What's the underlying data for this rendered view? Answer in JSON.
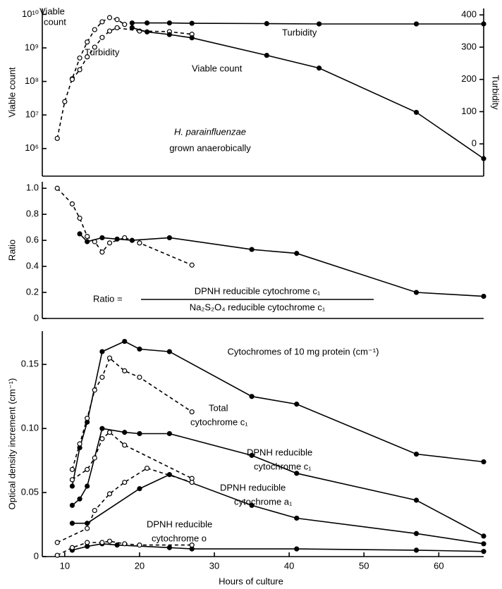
{
  "chart_data": [
    {
      "type": "line",
      "yscale": "log",
      "ylabel": "Viable count",
      "y2label": "Turbidity",
      "ylim": [
        150000,
        15000000000
      ],
      "yticks": [
        {
          "value": 1000000,
          "label": "10⁶"
        },
        {
          "value": 10000000,
          "label": "10⁷"
        },
        {
          "value": 100000000,
          "label": "10⁸"
        },
        {
          "value": 1000000000,
          "label": "10⁹"
        },
        {
          "value": 10000000000,
          "label": "10¹⁰"
        }
      ],
      "y2lim": [
        -100,
        420
      ],
      "y2ticks": [
        0,
        100,
        200,
        300,
        400
      ],
      "xlim": [
        7,
        66
      ],
      "series": [
        {
          "color": "#000",
          "marker": "open",
          "dashed": true,
          "x": [
            9,
            10,
            11,
            12,
            13,
            14,
            15,
            16,
            17,
            18
          ],
          "values": [
            2000000,
            25000000,
            120000000,
            500000000,
            1500000000,
            3500000000,
            6000000000,
            8000000000,
            7000000000,
            5000000000
          ]
        },
        {
          "color": "#000",
          "marker": "open",
          "dashed": true,
          "axis": "y2",
          "x": [
            11,
            12,
            13,
            14,
            15,
            16,
            17,
            20,
            24,
            27
          ],
          "values": [
            200,
            230,
            270,
            300,
            330,
            350,
            360,
            350,
            348,
            340
          ]
        },
        {
          "color": "#000",
          "marker": "filled",
          "dashed": false,
          "x": [
            19,
            21,
            24,
            27,
            37,
            44,
            57,
            66
          ],
          "values": [
            4000000000,
            3000000000,
            2500000000,
            2000000000,
            600000000,
            250000000,
            12000000,
            500000
          ]
        },
        {
          "color": "#000",
          "marker": "filled",
          "dashed": false,
          "axis": "y2",
          "x": [
            19,
            21,
            24,
            27,
            37,
            44,
            57,
            66
          ],
          "values": [
            375,
            375,
            375,
            374,
            373,
            372,
            372,
            372
          ]
        }
      ],
      "annotations": [
        "Viable",
        "count",
        "Turbidity",
        "Turbidity",
        "Viable count",
        "H. parainfluenzae",
        "grown anaerobically"
      ]
    },
    {
      "type": "line",
      "ylabel": "Ratio",
      "ylim": [
        0,
        1.05
      ],
      "yticks": [
        0,
        0.2,
        0.4,
        0.6,
        0.8,
        {
          "value": 1,
          "label": "1.0"
        }
      ],
      "xlim": [
        7,
        66
      ],
      "series": [
        {
          "color": "#000",
          "marker": "open",
          "dashed": true,
          "x": [
            9,
            11,
            12,
            13,
            14,
            15,
            16,
            18,
            20,
            27
          ],
          "values": [
            1.0,
            0.88,
            0.77,
            0.63,
            0.59,
            0.51,
            0.58,
            0.62,
            0.58,
            0.41
          ]
        },
        {
          "color": "#000",
          "marker": "filled",
          "dashed": false,
          "x": [
            12,
            13,
            15,
            17,
            19,
            24,
            35,
            41,
            57,
            66
          ],
          "values": [
            0.65,
            0.59,
            0.62,
            0.61,
            0.6,
            0.62,
            0.53,
            0.5,
            0.2,
            0.17
          ]
        }
      ],
      "annotations": [
        "Ratio =",
        "DPNH reducible cytochrome c₁",
        "Na₂S₂O₄ reducible cytochrome c₁"
      ]
    },
    {
      "type": "line",
      "ylabel": "Optical density increment (cm⁻¹)",
      "xlabel": "Hours of culture",
      "ylim": [
        0,
        0.176
      ],
      "yticks": [
        0,
        0.05,
        {
          "value": 0.1,
          "label": "0.10"
        },
        0.15
      ],
      "xlim": [
        7,
        66
      ],
      "xticks": [
        10,
        20,
        30,
        40,
        50,
        60
      ],
      "series": [
        {
          "color": "#000",
          "marker": "filled",
          "dashed": false,
          "x": [
            11,
            12,
            13,
            15,
            18,
            20,
            24,
            35,
            41,
            57,
            66
          ],
          "values": [
            0.055,
            0.085,
            0.105,
            0.16,
            0.168,
            0.162,
            0.16,
            0.125,
            0.119,
            0.08,
            0.074
          ]
        },
        {
          "color": "#000",
          "marker": "open",
          "dashed": true,
          "x": [
            11,
            12,
            13,
            14,
            15,
            16,
            18,
            20,
            27
          ],
          "values": [
            0.068,
            0.088,
            0.108,
            0.13,
            0.14,
            0.155,
            0.145,
            0.14,
            0.113
          ]
        },
        {
          "color": "#000",
          "marker": "filled",
          "dashed": false,
          "x": [
            11,
            12,
            13,
            15,
            18,
            20,
            24,
            35,
            41,
            57,
            66
          ],
          "values": [
            0.04,
            0.045,
            0.055,
            0.1,
            0.097,
            0.096,
            0.096,
            0.079,
            0.065,
            0.044,
            0.016
          ]
        },
        {
          "color": "#000",
          "marker": "open",
          "dashed": true,
          "x": [
            11,
            13,
            14,
            15,
            16,
            18,
            27
          ],
          "values": [
            0.06,
            0.068,
            0.077,
            0.092,
            0.097,
            0.087,
            0.061
          ]
        },
        {
          "color": "#000",
          "marker": "filled",
          "dashed": false,
          "x": [
            11,
            13,
            20,
            24,
            35,
            41,
            57,
            66
          ],
          "values": [
            0.026,
            0.026,
            0.053,
            0.064,
            0.04,
            0.03,
            0.018,
            0.01
          ]
        },
        {
          "color": "#000",
          "marker": "open",
          "dashed": true,
          "x": [
            9,
            13,
            14,
            16,
            18,
            21,
            27
          ],
          "values": [
            0.011,
            0.022,
            0.036,
            0.049,
            0.058,
            0.069,
            0.058
          ]
        },
        {
          "color": "#000",
          "marker": "filled",
          "dashed": false,
          "x": [
            11,
            13,
            15,
            17,
            24,
            27,
            41,
            57,
            66
          ],
          "values": [
            0.005,
            0.008,
            0.01,
            0.009,
            0.007,
            0.006,
            0.006,
            0.005,
            0.004
          ]
        },
        {
          "color": "#000",
          "marker": "open",
          "dashed": true,
          "x": [
            9,
            11,
            13,
            15,
            16,
            18,
            20,
            27
          ],
          "values": [
            0.001,
            0.007,
            0.011,
            0.011,
            0.012,
            0.01,
            0.009,
            0.009
          ]
        }
      ],
      "annotations": [
        "Cytochromes of 10 mg protein (cm⁻¹)",
        "Total",
        "cytochrome c₁",
        "DPNH reducible",
        "cytochrome c₁",
        "DPNH reducible",
        "cytochrome a₁",
        "DPNH reducible",
        "cytochrome o"
      ]
    }
  ]
}
